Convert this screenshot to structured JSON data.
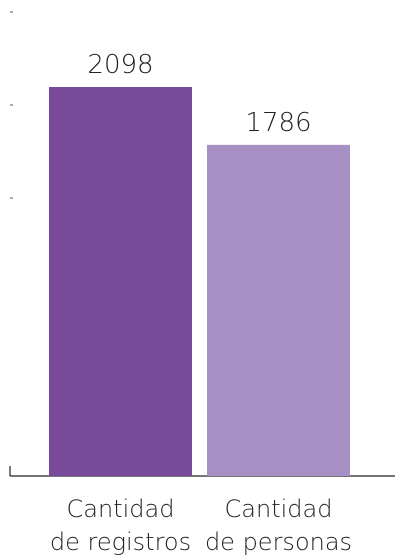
{
  "chart_data": {
    "type": "bar",
    "categories": [
      [
        "Cantidad",
        "de registros"
      ],
      [
        "Cantidad",
        "de personas"
      ]
    ],
    "values": [
      2098,
      1786
    ],
    "data_labels": [
      "2098",
      "1786"
    ],
    "colors": [
      "#774A9A",
      "#A791C4"
    ],
    "ylim": [
      0,
      2098
    ],
    "grid": false,
    "title": "",
    "xlabel": "",
    "ylabel": ""
  }
}
